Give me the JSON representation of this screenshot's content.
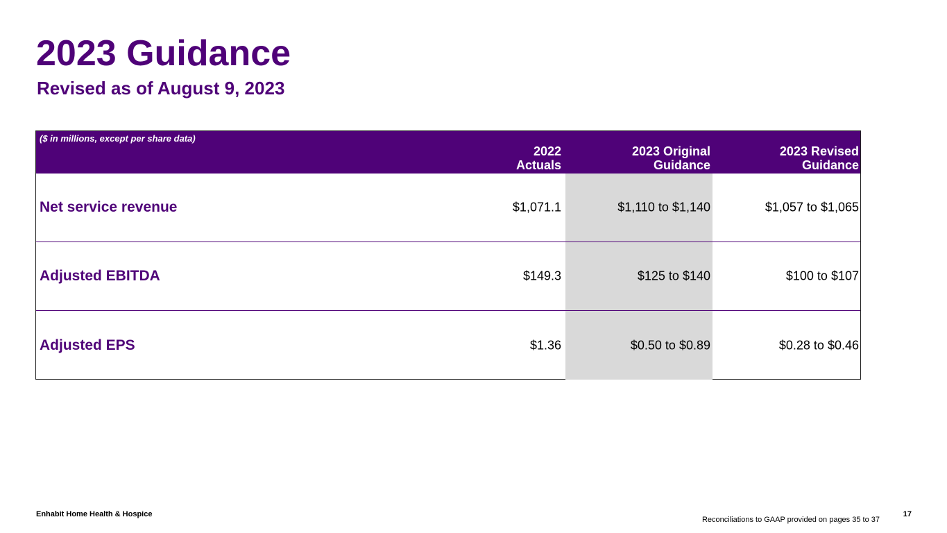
{
  "slide": {
    "title": "2023 Guidance",
    "subtitle": "Revised as of August 9, 2023"
  },
  "table": {
    "units_note": "($ in millions, except per share data)",
    "columns": [
      {
        "line1": "2022",
        "line2": "Actuals"
      },
      {
        "line1": "2023 Original",
        "line2": "Guidance"
      },
      {
        "line1": "2023 Revised",
        "line2": "Guidance"
      }
    ],
    "rows": [
      {
        "label": "Net service revenue",
        "values": [
          "$1,071.1",
          "$1,110 to $1,140",
          "$1,057 to $1,065"
        ]
      },
      {
        "label": "Adjusted EBITDA",
        "values": [
          "$149.3",
          "$125 to $140",
          "$100 to $107"
        ]
      },
      {
        "label": "Adjusted EPS",
        "values": [
          "$1.36",
          "$0.50 to $0.89",
          "$0.28 to $0.46"
        ]
      }
    ]
  },
  "footer": {
    "company": "Enhabit Home Health & Hospice",
    "note": "Reconciliations to GAAP provided on pages 35 to 37",
    "page_number": "17"
  },
  "colors": {
    "brand_purple": "#4f0278",
    "highlight_gray": "#d9d9d9"
  }
}
